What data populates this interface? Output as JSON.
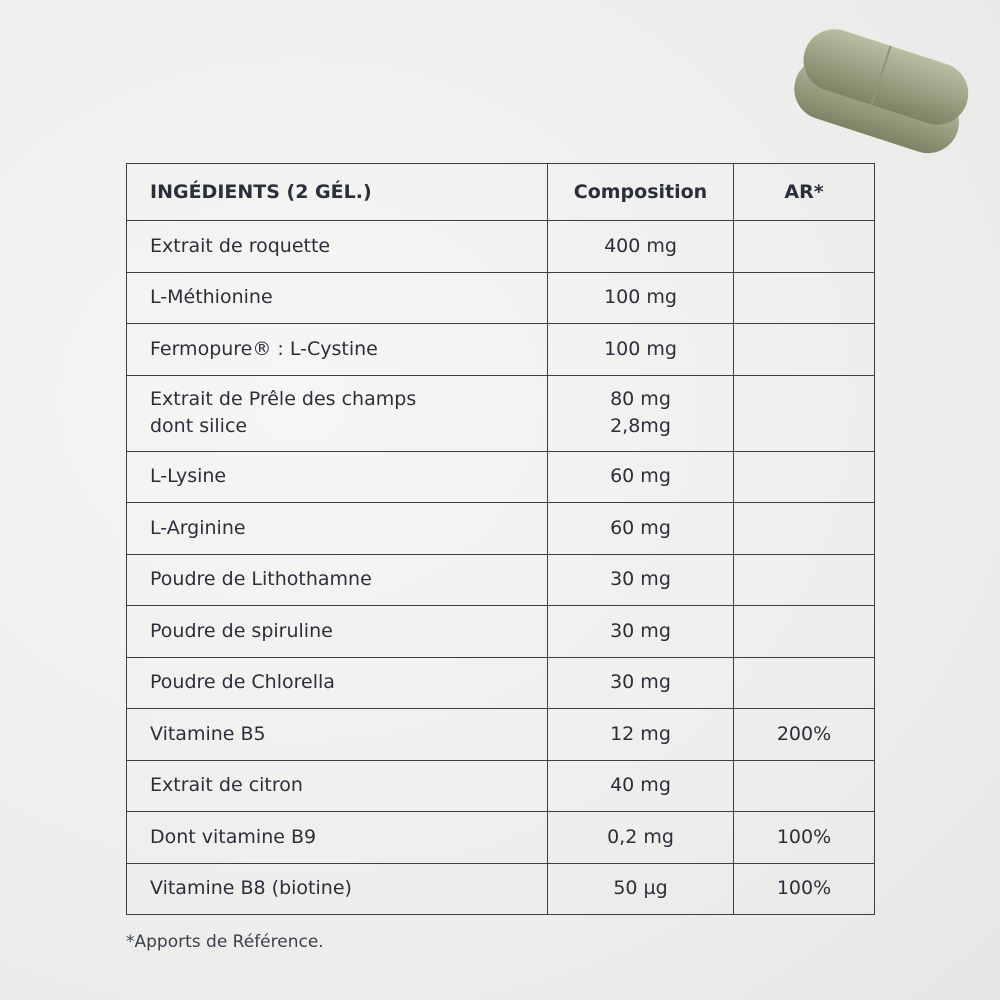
{
  "table": {
    "header": [
      "INGÉDIENTS (2 GÉL.)",
      "Composition",
      "AR*"
    ],
    "rows": [
      {
        "ingredient": [
          "Extrait de roquette"
        ],
        "composition": [
          "400 mg"
        ]
      },
      {
        "ingredient": [
          "L-Méthionine"
        ],
        "composition": [
          "100 mg"
        ]
      },
      {
        "ingredient": [
          "Fermopure® : L-Cystine"
        ],
        "composition": [
          "100 mg"
        ]
      },
      {
        "ingredient": [
          "Extrait de Prêle des champs",
          "dont silice"
        ],
        "composition": [
          "80 mg",
          "2,8mg"
        ]
      },
      {
        "ingredient": [
          "L-Lysine"
        ],
        "composition": [
          "60 mg"
        ]
      },
      {
        "ingredient": [
          "L-Arginine"
        ],
        "composition": [
          "60 mg"
        ]
      },
      {
        "ingredient": [
          "Poudre de Lithothamne"
        ],
        "composition": [
          "30 mg"
        ]
      },
      {
        "ingredient": [
          "Poudre de spiruline"
        ],
        "composition": [
          "30 mg"
        ]
      },
      {
        "ingredient": [
          "Poudre de Chlorella"
        ],
        "composition": [
          "30 mg"
        ]
      },
      {
        "ingredient": [
          "Vitamine B5"
        ],
        "composition": [
          "12 mg"
        ],
        "ar": "200%"
      },
      {
        "ingredient": [
          "Extrait de citron"
        ],
        "composition": [
          "40 mg"
        ]
      },
      {
        "ingredient": [
          "Dont vitamine B9"
        ],
        "composition": [
          "0,2 mg"
        ],
        "ar": "100%"
      },
      {
        "ingredient": [
          "Vitamine B8 (biotine)"
        ],
        "composition": [
          "50 µg"
        ],
        "ar": "100%"
      }
    ]
  },
  "footnote": "*Apports de Référence."
}
